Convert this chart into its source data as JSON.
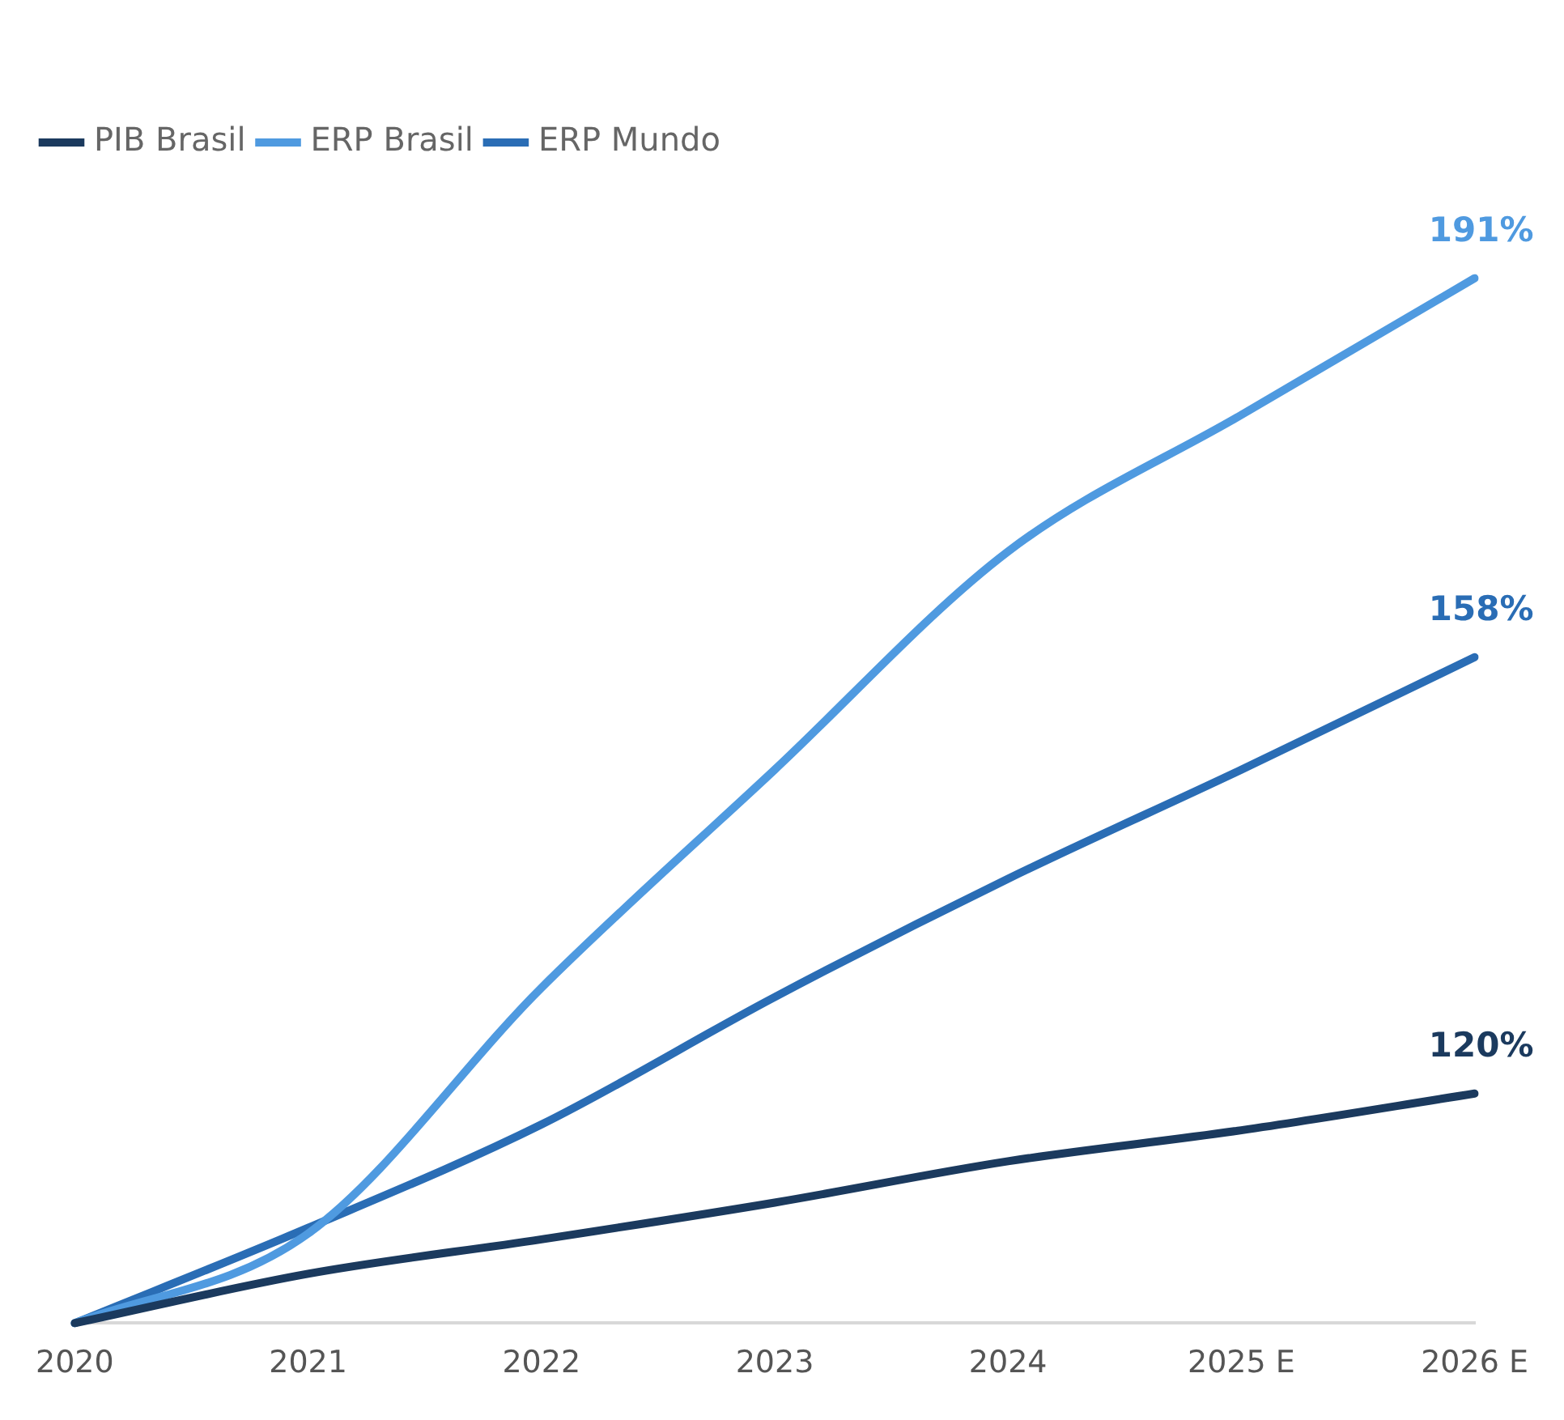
{
  "chart_data": {
    "type": "line",
    "categories": [
      "2020",
      "2021",
      "2022",
      "2023",
      "2024",
      "2025 E",
      "2026 E"
    ],
    "series": [
      {
        "name": "PIB Brasil",
        "color": "#1b3a5e",
        "values": [
          100,
          104.3,
          107.3,
          110.5,
          114.1,
          116.8,
          120
        ],
        "value_labels": [
          null,
          null,
          null,
          null,
          null,
          null,
          "120%"
        ]
      },
      {
        "name": "ERP Brasil",
        "color": "#4f9ae0",
        "values": [
          100,
          107.8,
          129.2,
          148.2,
          167.2,
          179.1,
          191
        ],
        "value_labels": [
          null,
          null,
          null,
          null,
          null,
          null,
          "191%"
        ]
      },
      {
        "name": "ERP Mundo",
        "color": "#2a6db5",
        "values": [
          100,
          108.3,
          117.3,
          128.4,
          138.7,
          148.2,
          158
        ],
        "value_labels": [
          null,
          null,
          null,
          null,
          null,
          null,
          "158%"
        ]
      }
    ],
    "tick_labels": "x",
    "grid": false,
    "legend": "top left",
    "marker": "none",
    "line_style": "solid"
  }
}
